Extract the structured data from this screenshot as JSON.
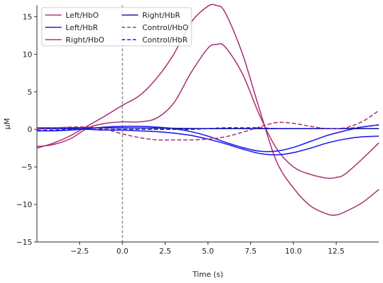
{
  "chart_data": {
    "type": "line",
    "title": "",
    "xlabel": "Time (s)",
    "ylabel": "µM",
    "xlim": [
      -5,
      15
    ],
    "ylim": [
      -15,
      16.5
    ],
    "xticks": [
      -2.5,
      0.0,
      2.5,
      5.0,
      7.5,
      10.0,
      12.5
    ],
    "xtick_labels": [
      "−2.5",
      "0.0",
      "2.5",
      "5.0",
      "7.5",
      "10.0",
      "12.5"
    ],
    "yticks": [
      -15,
      -10,
      -5,
      0,
      5,
      10,
      15
    ],
    "ytick_labels": [
      "−15",
      "−10",
      "−5",
      "0",
      "5",
      "10",
      "15"
    ],
    "grid": false,
    "legend_position": "top-left",
    "vline_x": 0,
    "series": [
      {
        "name": "Left/HbO",
        "color": "#aa3377",
        "style": "solid",
        "lines": [
          {
            "x": [
              -5,
              -4,
              -3,
              -2,
              -1,
              0,
              1,
              2,
              3,
              4,
              5,
              5.5,
              6,
              7,
              8,
              9,
              10,
              11,
              12,
              12.5,
              13,
              14,
              15
            ],
            "y": [
              -2.5,
              -1.8,
              -0.8,
              0.5,
              1.8,
              3.2,
              4.5,
              6.8,
              10.0,
              14.2,
              16.4,
              16.5,
              15.6,
              10.2,
              2.8,
              -4.2,
              -7.8,
              -10.2,
              -11.3,
              -11.4,
              -11.0,
              -9.8,
              -8.0
            ]
          },
          {
            "x": [
              -5,
              -4,
              -3,
              -2,
              -1,
              0,
              1,
              2,
              3,
              4,
              5,
              5.5,
              6,
              7,
              8,
              9,
              10,
              11,
              12,
              12.5,
              13,
              14,
              15
            ],
            "y": [
              -2.3,
              -2.0,
              -1.2,
              0.2,
              0.8,
              1.0,
              1.0,
              1.5,
              3.5,
              7.5,
              10.8,
              11.3,
              11.0,
              7.5,
              2.0,
              -2.5,
              -5.0,
              -6.0,
              -6.5,
              -6.4,
              -6.0,
              -4.0,
              -1.8
            ]
          }
        ]
      },
      {
        "name": "Left/HbR",
        "color": "#1a1aee",
        "style": "solid",
        "lines": [
          {
            "x": [
              -5,
              -4,
              -3,
              -2,
              -1,
              0,
              1,
              2,
              3,
              4,
              5,
              6,
              7,
              8,
              9,
              10,
              11,
              12,
              13,
              14,
              15
            ],
            "y": [
              0.1,
              0.1,
              0.1,
              0.0,
              -0.1,
              -0.1,
              -0.2,
              -0.3,
              -0.5,
              -0.8,
              -1.3,
              -1.9,
              -2.6,
              -3.2,
              -3.4,
              -3.1,
              -2.5,
              -1.8,
              -1.3,
              -1.0,
              -0.9
            ]
          },
          {
            "x": [
              -5,
              -4,
              -3,
              -2,
              -1,
              0,
              1,
              2,
              3,
              4,
              5,
              6,
              7,
              8,
              9,
              10,
              11,
              12,
              13,
              14,
              15
            ],
            "y": [
              -0.2,
              -0.2,
              -0.1,
              0.1,
              0.3,
              0.4,
              0.4,
              0.3,
              0.1,
              -0.3,
              -0.9,
              -1.7,
              -2.4,
              -2.9,
              -2.9,
              -2.4,
              -1.6,
              -0.8,
              -0.2,
              0.3,
              0.6
            ]
          }
        ]
      },
      {
        "name": "Right/HbO",
        "color": "#aa3377",
        "style": "solid",
        "lines": []
      },
      {
        "name": "Right/HbR",
        "color": "#1a1a99",
        "style": "solid",
        "lines": [
          {
            "x": [
              -5,
              0,
              5,
              10,
              15
            ],
            "y": [
              0.2,
              0.2,
              0.1,
              0.1,
              0.1
            ]
          }
        ]
      },
      {
        "name": "Control/HbO",
        "color": "#aa3377",
        "style": "dashed",
        "lines": [
          {
            "x": [
              -5,
              -4,
              -3,
              -2,
              -1,
              0,
              1,
              2,
              3,
              4,
              5,
              6,
              7,
              8,
              9,
              10,
              11,
              12,
              13,
              14,
              15
            ],
            "y": [
              0.1,
              0.2,
              0.3,
              0.3,
              0.0,
              -0.6,
              -1.1,
              -1.4,
              -1.4,
              -1.4,
              -1.3,
              -1.0,
              -0.4,
              0.3,
              0.9,
              0.8,
              0.4,
              0.1,
              0.2,
              1.0,
              2.5
            ]
          }
        ]
      },
      {
        "name": "Control/HbR",
        "color": "#1a1aee",
        "style": "dashed",
        "lines": [
          {
            "x": [
              -5,
              -4,
              -3,
              -2,
              -1,
              0,
              1,
              2,
              3,
              4,
              5,
              6,
              7,
              8,
              9,
              10,
              11,
              12,
              13,
              14,
              15
            ],
            "y": [
              -0.1,
              -0.1,
              0.0,
              0.0,
              0.0,
              0.0,
              0.0,
              0.0,
              0.0,
              0.0,
              0.1,
              0.2,
              0.2,
              0.2,
              0.1,
              0.1,
              0.1,
              0.1,
              0.1,
              0.3,
              0.6
            ]
          }
        ]
      }
    ]
  }
}
